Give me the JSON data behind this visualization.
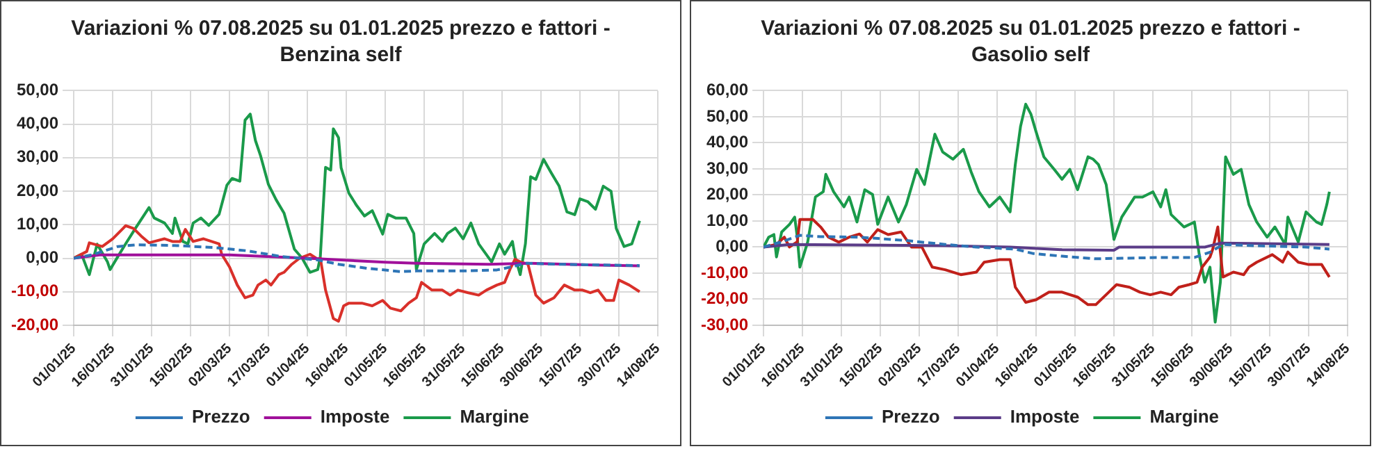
{
  "chart_data": [
    {
      "type": "line",
      "title": "Variazioni % 07.08.2025 su 01.01.2025 prezzo e fattori - Benzina self",
      "xlim": [
        "2025-01-01",
        "2025-08-14"
      ],
      "xticks": [
        {
          "value": "2025-01-01",
          "label": "01/01/25"
        },
        {
          "value": "2025-01-16",
          "label": "16/01/25"
        },
        {
          "value": "2025-01-31",
          "label": "31/01/25"
        },
        {
          "value": "2025-02-15",
          "label": "15/02/25"
        },
        {
          "value": "2025-03-02",
          "label": "02/03/25"
        },
        {
          "value": "2025-03-17",
          "label": "17/03/25"
        },
        {
          "value": "2025-04-01",
          "label": "01/04/25"
        },
        {
          "value": "2025-04-16",
          "label": "16/04/25"
        },
        {
          "value": "2025-05-01",
          "label": "01/05/25"
        },
        {
          "value": "2025-05-16",
          "label": "16/05/25"
        },
        {
          "value": "2025-05-31",
          "label": "31/05/25"
        },
        {
          "value": "2025-06-15",
          "label": "15/06/25"
        },
        {
          "value": "2025-06-30",
          "label": "30/06/25"
        },
        {
          "value": "2025-07-15",
          "label": "15/07/25"
        },
        {
          "value": "2025-07-30",
          "label": "30/07/25"
        },
        {
          "value": "2025-08-14",
          "label": "14/08/25"
        }
      ],
      "ylim": [
        -20,
        50
      ],
      "yticks": [
        {
          "value": -20,
          "label": "-20,00"
        },
        {
          "value": -10,
          "label": "-10,00"
        },
        {
          "value": 0,
          "label": "0,00"
        },
        {
          "value": 10,
          "label": "10,00"
        },
        {
          "value": 20,
          "label": "20,00"
        },
        {
          "value": 30,
          "label": "30,00"
        },
        {
          "value": 40,
          "label": "40,00"
        },
        {
          "value": 50,
          "label": "50,00"
        }
      ],
      "grid": true,
      "legend": "bottom",
      "marker": "none",
      "series": [
        {
          "name": "Prezzo",
          "color": "#2e75b6",
          "line_style": "dashed",
          "x": [
            "2025-01-01",
            "2025-01-08",
            "2025-01-18",
            "2025-01-25",
            "2025-02-09",
            "2025-02-24",
            "2025-03-09",
            "2025-03-22",
            "2025-03-29",
            "2025-04-05",
            "2025-04-13",
            "2025-04-24",
            "2025-05-07",
            "2025-05-13",
            "2025-05-31",
            "2025-06-13",
            "2025-06-19",
            "2025-06-24",
            "2025-07-07",
            "2025-08-07"
          ],
          "values": [
            0,
            1,
            3.5,
            4,
            3.8,
            3.2,
            2.2,
            0.5,
            0,
            -0.5,
            -1.8,
            -3,
            -4,
            -3.8,
            -3.8,
            -3.5,
            -2.5,
            -1.5,
            -1.8,
            -2.2
          ]
        },
        {
          "name": "Imposte",
          "color": "#a0109a",
          "line_style": "solid",
          "x": [
            "2025-01-01",
            "2025-01-11",
            "2025-03-02",
            "2025-04-01",
            "2025-05-01",
            "2025-05-13",
            "2025-06-10",
            "2025-06-25",
            "2025-07-20",
            "2025-08-07"
          ],
          "values": [
            0,
            1,
            1,
            0,
            -1.2,
            -1.5,
            -1.8,
            -1.5,
            -2,
            -2.3
          ]
        },
        {
          "color": "#d9302a",
          "line_style": "solid",
          "x": [
            "2025-01-01",
            "2025-01-06",
            "2025-01-07",
            "2025-01-12",
            "2025-01-16",
            "2025-01-20",
            "2025-01-21",
            "2025-01-24",
            "2025-01-27",
            "2025-01-30",
            "2025-02-01",
            "2025-02-05",
            "2025-02-08",
            "2025-02-11",
            "2025-02-13",
            "2025-02-16",
            "2025-02-20",
            "2025-02-26",
            "2025-02-27",
            "2025-03-02",
            "2025-03-05",
            "2025-03-08",
            "2025-03-11",
            "2025-03-13",
            "2025-03-16",
            "2025-03-18",
            "2025-03-21",
            "2025-03-23",
            "2025-03-26",
            "2025-03-29",
            "2025-04-02",
            "2025-04-05",
            "2025-04-06",
            "2025-04-08",
            "2025-04-11",
            "2025-04-13",
            "2025-04-15",
            "2025-04-17",
            "2025-04-22",
            "2025-04-26",
            "2025-04-30",
            "2025-05-03",
            "2025-05-07",
            "2025-05-10",
            "2025-05-13",
            "2025-05-15",
            "2025-05-19",
            "2025-05-23",
            "2025-05-26",
            "2025-05-29",
            "2025-06-02",
            "2025-06-06",
            "2025-06-09",
            "2025-06-13",
            "2025-06-16",
            "2025-06-18",
            "2025-06-20",
            "2025-06-22",
            "2025-06-25",
            "2025-06-28",
            "2025-07-01",
            "2025-07-05",
            "2025-07-09",
            "2025-07-13",
            "2025-07-16",
            "2025-07-19",
            "2025-07-22",
            "2025-07-25",
            "2025-07-28",
            "2025-07-30",
            "2025-08-03",
            "2025-08-07"
          ],
          "values": [
            0,
            2,
            4.6,
            3.5,
            5.8,
            8.9,
            9.7,
            8.9,
            6.6,
            4.6,
            5,
            5.8,
            5,
            5,
            8.6,
            5,
            5.8,
            4.3,
            1.2,
            -2.6,
            -8,
            -11.8,
            -11,
            -8,
            -6.5,
            -8,
            -4.9,
            -4.2,
            -1.8,
            0,
            1.2,
            -0.3,
            0,
            -9.5,
            -18,
            -18.8,
            -14.2,
            -13.4,
            -13.4,
            -14.2,
            -12.6,
            -14.9,
            -15.7,
            -13.4,
            -11.8,
            -7.2,
            -9.5,
            -9.5,
            -11,
            -9.5,
            -10.3,
            -11,
            -9.5,
            -8,
            -7.2,
            -3.4,
            -0.3,
            -1.1,
            -1.8,
            -11,
            -13.4,
            -11.8,
            -8,
            -9.5,
            -9.5,
            -10.3,
            -9.5,
            -12.6,
            -12.6,
            -6.5,
            -8,
            -10
          ]
        },
        {
          "name": "Margine",
          "color": "#1a9a4a",
          "line_style": "solid",
          "x": [
            "2025-01-01",
            "2025-01-04",
            "2025-01-07",
            "2025-01-10",
            "2025-01-14",
            "2025-01-15",
            "2025-01-18",
            "2025-01-21",
            "2025-01-25",
            "2025-01-30",
            "2025-02-01",
            "2025-02-05",
            "2025-02-08",
            "2025-02-09",
            "2025-02-12",
            "2025-02-14",
            "2025-02-16",
            "2025-02-19",
            "2025-02-22",
            "2025-02-26",
            "2025-03-01",
            "2025-03-03",
            "2025-03-06",
            "2025-03-08",
            "2025-03-10",
            "2025-03-12",
            "2025-03-14",
            "2025-03-17",
            "2025-03-20",
            "2025-03-23",
            "2025-03-27",
            "2025-03-30",
            "2025-04-02",
            "2025-04-05",
            "2025-04-06",
            "2025-04-08",
            "2025-04-10",
            "2025-04-11",
            "2025-04-13",
            "2025-04-14",
            "2025-04-17",
            "2025-04-20",
            "2025-04-23",
            "2025-04-26",
            "2025-04-30",
            "2025-05-02",
            "2025-05-05",
            "2025-05-09",
            "2025-05-12",
            "2025-05-13",
            "2025-05-16",
            "2025-05-20",
            "2025-05-23",
            "2025-05-25",
            "2025-05-28",
            "2025-05-31",
            "2025-06-03",
            "2025-06-06",
            "2025-06-11",
            "2025-06-14",
            "2025-06-16",
            "2025-06-19",
            "2025-06-20",
            "2025-06-22",
            "2025-06-24",
            "2025-06-26",
            "2025-06-28",
            "2025-07-01",
            "2025-07-04",
            "2025-07-07",
            "2025-07-10",
            "2025-07-13",
            "2025-07-15",
            "2025-07-18",
            "2025-07-21",
            "2025-07-24",
            "2025-07-27",
            "2025-07-29",
            "2025-08-01",
            "2025-08-04",
            "2025-08-07"
          ],
          "values": [
            0,
            1.2,
            -4.9,
            4.2,
            -1.1,
            -3.4,
            0.5,
            4.3,
            9.2,
            15.1,
            12,
            10.5,
            7.4,
            12,
            5,
            4.3,
            10.5,
            12,
            9.8,
            13.1,
            21.8,
            23.8,
            23,
            41.2,
            43,
            35.1,
            30.5,
            22,
            17.4,
            13.5,
            2.7,
            0,
            -4.2,
            -3.4,
            0.5,
            27.1,
            26.3,
            38.6,
            36,
            27,
            19.4,
            15.7,
            12.6,
            14.2,
            7.2,
            13.1,
            12,
            12,
            7.4,
            -3.4,
            4.3,
            7.4,
            5,
            7.4,
            9,
            5.8,
            10.5,
            4.3,
            -1.1,
            4.3,
            1.2,
            5,
            0.5,
            -4.9,
            4.3,
            24.3,
            23.5,
            29.5,
            25.4,
            21.5,
            13.8,
            13,
            17.7,
            16.9,
            14.6,
            21.5,
            20,
            8.9,
            3.5,
            4.3,
            11.2
          ]
        }
      ]
    },
    {
      "type": "line",
      "title": "Variazioni % 07.08.2025 su 01.01.2025 prezzo e fattori - Gasolio self",
      "xlim": [
        "2025-01-01",
        "2025-08-14"
      ],
      "xticks": [
        {
          "value": "2025-01-01",
          "label": "01/01/25"
        },
        {
          "value": "2025-01-16",
          "label": "16/01/25"
        },
        {
          "value": "2025-01-31",
          "label": "31/01/25"
        },
        {
          "value": "2025-02-15",
          "label": "15/02/25"
        },
        {
          "value": "2025-03-02",
          "label": "02/03/25"
        },
        {
          "value": "2025-03-17",
          "label": "17/03/25"
        },
        {
          "value": "2025-04-01",
          "label": "01/04/25"
        },
        {
          "value": "2025-04-16",
          "label": "16/04/25"
        },
        {
          "value": "2025-05-01",
          "label": "01/05/25"
        },
        {
          "value": "2025-05-16",
          "label": "16/05/25"
        },
        {
          "value": "2025-05-31",
          "label": "31/05/25"
        },
        {
          "value": "2025-06-15",
          "label": "15/06/25"
        },
        {
          "value": "2025-06-30",
          "label": "30/06/25"
        },
        {
          "value": "2025-07-15",
          "label": "15/07/25"
        },
        {
          "value": "2025-07-30",
          "label": "30/07/25"
        },
        {
          "value": "2025-08-14",
          "label": "14/08/25"
        }
      ],
      "ylim": [
        -30,
        60
      ],
      "yticks": [
        {
          "value": -30,
          "label": "-30,00"
        },
        {
          "value": -20,
          "label": "-20,00"
        },
        {
          "value": -10,
          "label": "-10,00"
        },
        {
          "value": 0,
          "label": "0,00"
        },
        {
          "value": 10,
          "label": "10,00"
        },
        {
          "value": 20,
          "label": "20,00"
        },
        {
          "value": 30,
          "label": "30,00"
        },
        {
          "value": 40,
          "label": "40,00"
        },
        {
          "value": 50,
          "label": "50,00"
        },
        {
          "value": 60,
          "label": "60,00"
        }
      ],
      "grid": true,
      "legend": "bottom",
      "marker": "none",
      "series": [
        {
          "name": "Prezzo",
          "color": "#2e75b6",
          "line_style": "dashed",
          "x": [
            "2025-01-01",
            "2025-01-08",
            "2025-01-15",
            "2025-01-23",
            "2025-02-07",
            "2025-02-25",
            "2025-03-12",
            "2025-03-24",
            "2025-04-08",
            "2025-04-15",
            "2025-04-26",
            "2025-05-09",
            "2025-05-19",
            "2025-06-03",
            "2025-06-16",
            "2025-06-22",
            "2025-06-27",
            "2025-07-10",
            "2025-07-29",
            "2025-08-07"
          ],
          "values": [
            0,
            2,
            4.5,
            4,
            3.8,
            2.5,
            1,
            0,
            -0.8,
            -2.5,
            -3.5,
            -4.5,
            -4.3,
            -4,
            -4,
            -2,
            1,
            0.5,
            0,
            -0.8
          ]
        },
        {
          "name": "Imposte",
          "color": "#5b3c88",
          "line_style": "solid",
          "x": [
            "2025-01-01",
            "2025-01-11",
            "2025-03-12",
            "2025-04-06",
            "2025-04-26",
            "2025-05-16",
            "2025-05-18",
            "2025-06-20",
            "2025-06-26",
            "2025-08-07"
          ],
          "values": [
            0,
            1,
            0.5,
            0,
            -1,
            -1.2,
            0,
            0,
            1.5,
            1
          ]
        },
        {
          "color": "#c0201a",
          "line_style": "solid",
          "x": [
            "2025-01-01",
            "2025-01-06",
            "2025-01-09",
            "2025-01-11",
            "2025-01-14",
            "2025-01-15",
            "2025-01-20",
            "2025-01-23",
            "2025-01-26",
            "2025-01-30",
            "2025-02-03",
            "2025-02-07",
            "2025-02-10",
            "2025-02-14",
            "2025-02-18",
            "2025-02-23",
            "2025-02-27",
            "2025-03-03",
            "2025-03-07",
            "2025-03-12",
            "2025-03-18",
            "2025-03-24",
            "2025-03-27",
            "2025-04-02",
            "2025-04-06",
            "2025-04-08",
            "2025-04-12",
            "2025-04-16",
            "2025-04-21",
            "2025-04-26",
            "2025-05-02",
            "2025-05-06",
            "2025-05-09",
            "2025-05-14",
            "2025-05-17",
            "2025-05-22",
            "2025-05-26",
            "2025-05-30",
            "2025-06-03",
            "2025-06-07",
            "2025-06-10",
            "2025-06-14",
            "2025-06-17",
            "2025-06-19",
            "2025-06-22",
            "2025-06-23",
            "2025-06-25",
            "2025-06-27",
            "2025-07-01",
            "2025-07-05",
            "2025-07-07",
            "2025-07-10",
            "2025-07-16",
            "2025-07-20",
            "2025-07-22",
            "2025-07-26",
            "2025-07-30",
            "2025-08-04",
            "2025-08-07"
          ],
          "values": [
            0,
            1,
            3.8,
            0,
            2,
            10.6,
            10.6,
            7.7,
            3.8,
            1.9,
            3.8,
            5,
            1.9,
            6.7,
            4.8,
            5.8,
            0,
            0,
            -7.7,
            -8.7,
            -10.6,
            -9.6,
            -5.8,
            -4.8,
            -4.8,
            -15.4,
            -21.2,
            -20.2,
            -17.3,
            -17.3,
            -19.2,
            -22.1,
            -22.1,
            -17.3,
            -14.4,
            -15.4,
            -17.3,
            -18.3,
            -17.3,
            -18.3,
            -15.4,
            -14.4,
            -13.5,
            -7.7,
            -3.8,
            -1,
            7.7,
            -11.5,
            -9.6,
            -10.6,
            -7.7,
            -5.8,
            -2.9,
            -5.8,
            -1.9,
            -5.8,
            -6.7,
            -6.7,
            -11.5
          ]
        },
        {
          "name": "Margine",
          "color": "#1a9a4a",
          "line_style": "solid",
          "x": [
            "2025-01-01",
            "2025-01-03",
            "2025-01-05",
            "2025-01-06",
            "2025-01-08",
            "2025-01-11",
            "2025-01-13",
            "2025-01-14",
            "2025-01-15",
            "2025-01-18",
            "2025-01-21",
            "2025-01-24",
            "2025-01-25",
            "2025-01-28",
            "2025-02-01",
            "2025-02-03",
            "2025-02-06",
            "2025-02-09",
            "2025-02-12",
            "2025-02-14",
            "2025-02-18",
            "2025-02-22",
            "2025-02-25",
            "2025-03-01",
            "2025-03-04",
            "2025-03-08",
            "2025-03-11",
            "2025-03-15",
            "2025-03-19",
            "2025-03-22",
            "2025-03-25",
            "2025-03-29",
            "2025-04-02",
            "2025-04-06",
            "2025-04-08",
            "2025-04-10",
            "2025-04-12",
            "2025-04-14",
            "2025-04-16",
            "2025-04-19",
            "2025-04-23",
            "2025-04-26",
            "2025-04-29",
            "2025-05-02",
            "2025-05-06",
            "2025-05-08",
            "2025-05-10",
            "2025-05-13",
            "2025-05-16",
            "2025-05-19",
            "2025-05-24",
            "2025-05-27",
            "2025-05-31",
            "2025-06-03",
            "2025-06-05",
            "2025-06-07",
            "2025-06-12",
            "2025-06-16",
            "2025-06-18",
            "2025-06-20",
            "2025-06-22",
            "2025-06-24",
            "2025-06-26",
            "2025-06-28",
            "2025-07-01",
            "2025-07-04",
            "2025-07-07",
            "2025-07-10",
            "2025-07-14",
            "2025-07-17",
            "2025-07-21",
            "2025-07-22",
            "2025-07-26",
            "2025-07-29",
            "2025-08-02",
            "2025-08-04",
            "2025-08-06",
            "2025-08-07"
          ],
          "values": [
            0,
            3.8,
            4.8,
            -3.8,
            5.8,
            8.7,
            11.5,
            3.8,
            -7.7,
            1.9,
            19.2,
            21.2,
            27.9,
            21.2,
            15.4,
            19.2,
            9.6,
            22,
            20.2,
            8.7,
            19.2,
            9.6,
            16.3,
            29.8,
            24,
            43.3,
            36.5,
            33.7,
            37.5,
            28.8,
            21.2,
            15.4,
            19.2,
            13.5,
            31.7,
            46.2,
            54.8,
            51,
            44.2,
            34.6,
            29.8,
            26,
            29.8,
            22,
            34.6,
            33.7,
            31.7,
            24,
            2.9,
            11.5,
            19.2,
            19.2,
            21.2,
            15.4,
            22,
            12.5,
            7.7,
            9.6,
            -3.8,
            -13.5,
            -7.7,
            -28.8,
            -13.5,
            34.6,
            27.9,
            29.8,
            16.3,
            9.6,
            3.8,
            7.7,
            1,
            11.5,
            1.9,
            13.5,
            9.6,
            8.7,
            16.3,
            21.2
          ]
        }
      ]
    }
  ]
}
